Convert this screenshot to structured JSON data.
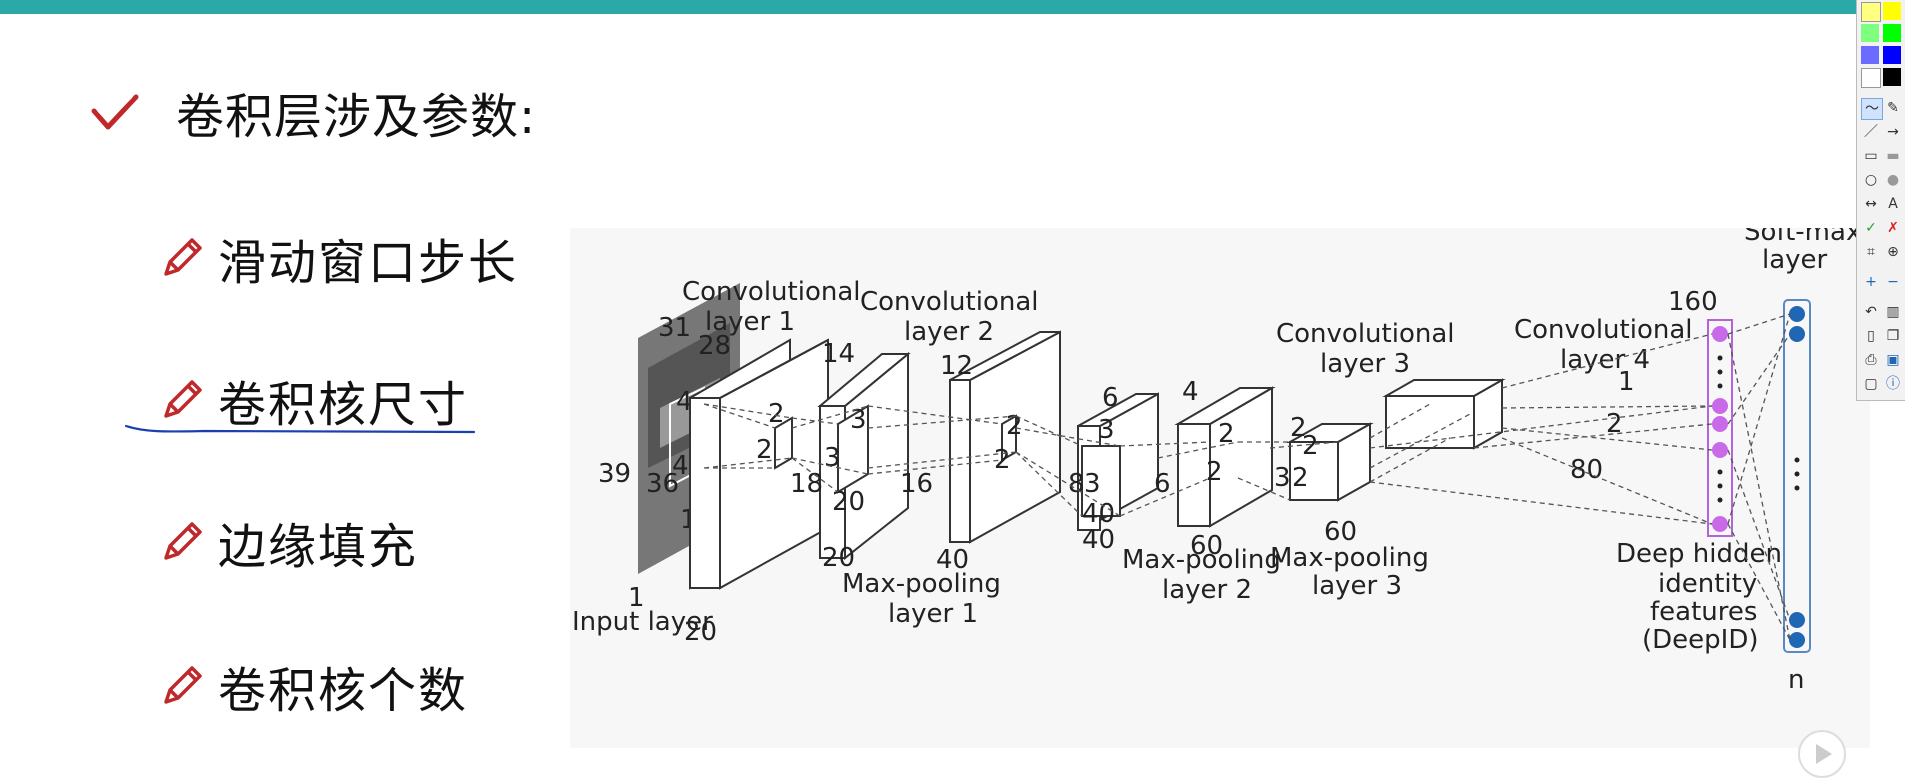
{
  "slide": {
    "heading": "卷积层涉及参数:",
    "items": [
      {
        "label": "滑动窗口步长"
      },
      {
        "label": "卷积核尺寸"
      },
      {
        "label": "边缘填充"
      },
      {
        "label": "卷积核个数"
      }
    ],
    "colors": {
      "accent_bar": "#2aa9a7",
      "bullet_icon": "#c0282a",
      "check_icon": "#c0282a",
      "underline": "#1b3fb0"
    }
  },
  "diagram": {
    "labels": {
      "input_layer": "Input layer",
      "conv1": [
        "Convolutional",
        "layer 1"
      ],
      "conv2": [
        "Convolutional",
        "layer 2"
      ],
      "conv3": [
        "Convolutional",
        "layer 3"
      ],
      "conv4": [
        "Convolutional",
        "layer 4"
      ],
      "pool1": [
        "Max-pooling",
        "layer 1"
      ],
      "pool2": [
        "Max-pooling",
        "layer 2"
      ],
      "pool3": [
        "Max-pooling",
        "layer 3"
      ],
      "deepid": [
        "Deep hidden",
        "identity",
        "features",
        "(DeepID)"
      ],
      "softmax": [
        "Soft-max",
        "layer"
      ],
      "n": "n"
    },
    "numbers": {
      "in_h": "31",
      "in_w": "39",
      "in_d": "1",
      "in_k1": "4",
      "in_k2": "4",
      "in_k3": "1",
      "c1_h": "28",
      "c1_w": "36",
      "c1_d": "20",
      "c1_k1": "2",
      "c1_k2": "2",
      "p1_h": "14",
      "p1_w": "18",
      "p1_d": "20",
      "p1_k1": "3",
      "p1_k2": "3",
      "p1_k3": "20",
      "c2_h": "12",
      "c2_w": "16",
      "c2_d": "40",
      "c2_k1": "2",
      "c2_k2": "2",
      "p2_h": "6",
      "p2_w": "8",
      "p2_d": "40",
      "p2_k1": "3",
      "p2_k2": "3",
      "p2_k3": "40",
      "c3_h": "4",
      "c3_w": "6",
      "c3_d": "60",
      "c3_k1": "2",
      "c3_k2": "2",
      "p3_h": "2",
      "p3_w": "3",
      "p3_d": "60",
      "p3_k1": "2",
      "p3_k2": "2",
      "c4_h": "1",
      "c4_w": "2",
      "c4_d": "80",
      "deepid_n": "160"
    }
  },
  "toolbar": {
    "colors": [
      "#ffff00",
      "#00ff00",
      "#0000ff",
      "#000000"
    ],
    "tools": [
      "freehand-icon",
      "eraser-icon",
      "line-icon",
      "arrow-icon",
      "rect-icon",
      "filled-rect-icon",
      "ellipse-icon",
      "filled-ellipse-icon",
      "double-arrow-icon",
      "text-tool-icon",
      "check-mark-icon",
      "cross-mark-icon",
      "crop-icon",
      "zoom-icon",
      "plus-icon",
      "minus-icon",
      "undo-icon",
      "trash-icon",
      "new-page-icon",
      "copy-icon",
      "print-icon",
      "save-icon",
      "screen-icon",
      "info-icon"
    ],
    "text_tool": "A"
  }
}
